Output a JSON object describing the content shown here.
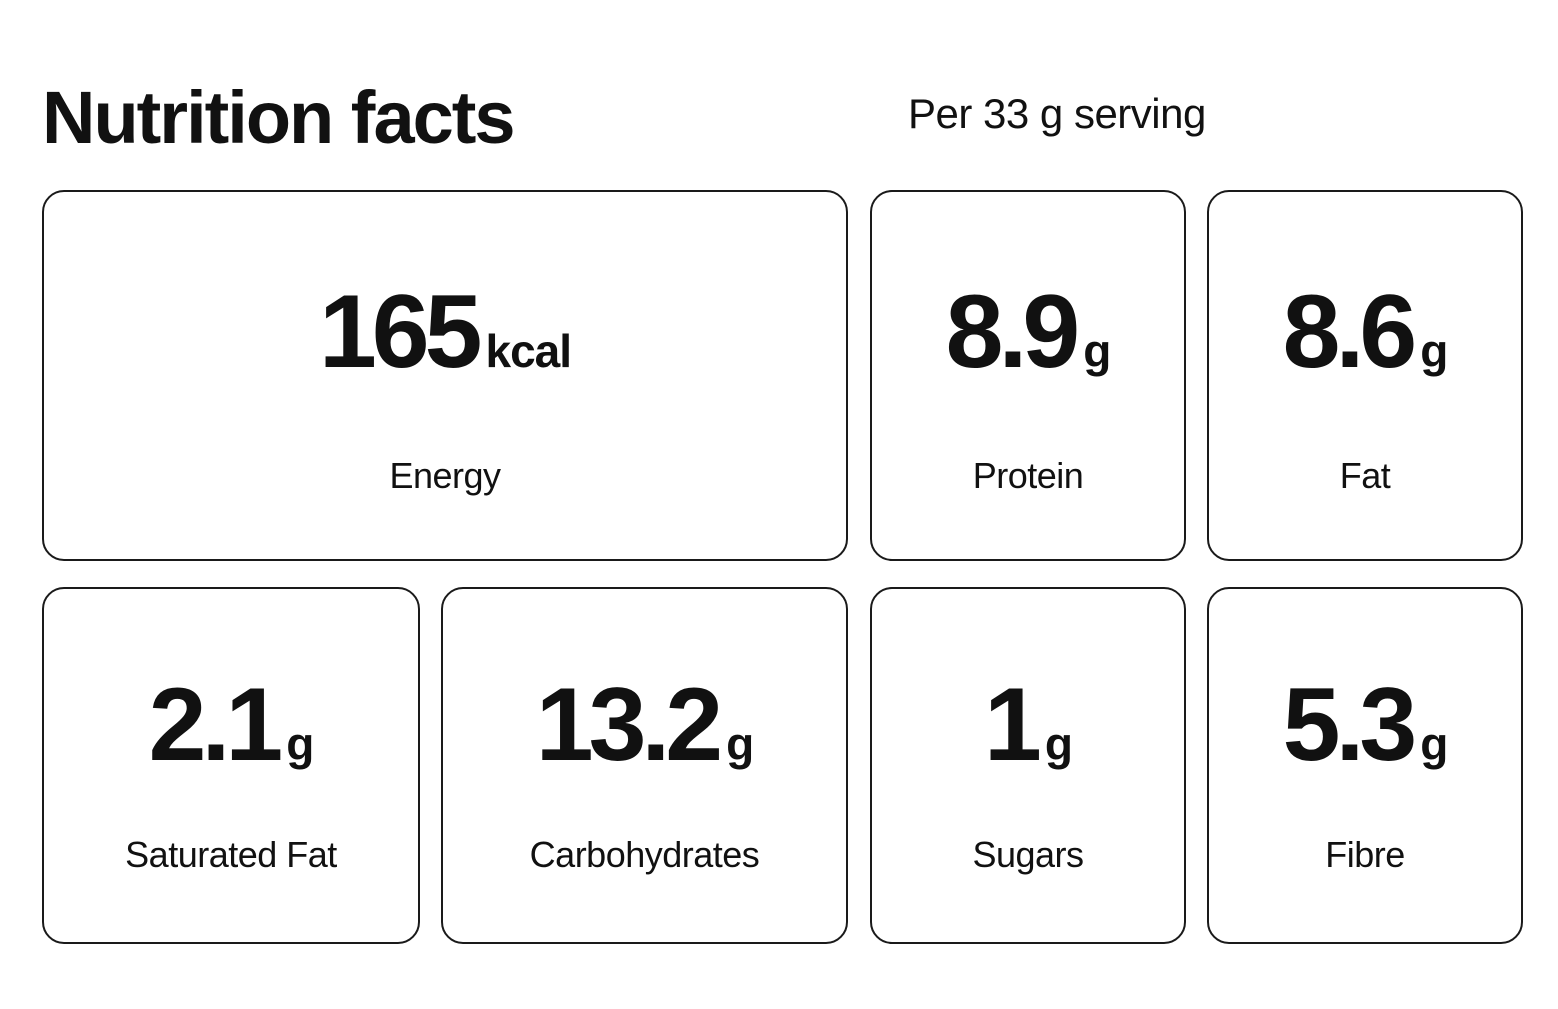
{
  "header": {
    "title": "Nutrition facts",
    "serving": "Per 33 g serving"
  },
  "nutrients": {
    "energy": {
      "value": "165",
      "unit": "kcal",
      "label": "Energy"
    },
    "protein": {
      "value": "8.9",
      "unit": "g",
      "label": "Protein"
    },
    "fat": {
      "value": "8.6",
      "unit": "g",
      "label": "Fat"
    },
    "satfat": {
      "value": "2.1",
      "unit": "g",
      "label": "Saturated Fat"
    },
    "carbs": {
      "value": "13.2",
      "unit": "g",
      "label": "Carbohydrates"
    },
    "sugars": {
      "value": "1",
      "unit": "g",
      "label": "Sugars"
    },
    "fibre": {
      "value": "5.3",
      "unit": "g",
      "label": "Fibre"
    }
  }
}
